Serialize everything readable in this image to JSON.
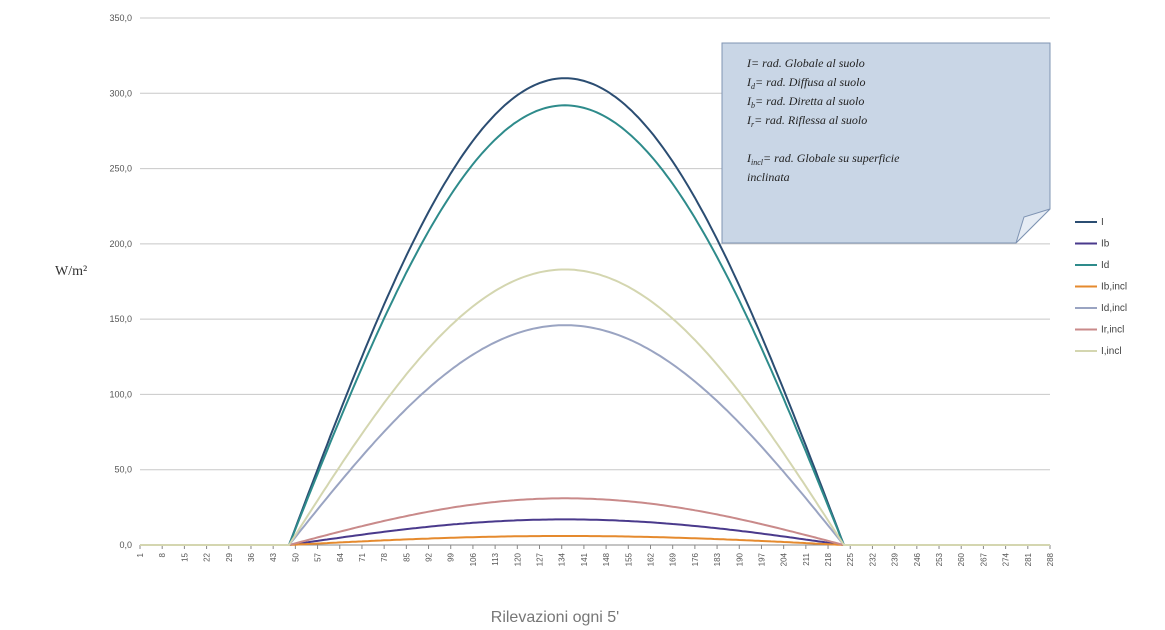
{
  "chart_data": {
    "type": "line",
    "xlabel": "Rilevazioni ogni 5'",
    "ylabel": "W/m²",
    "ylim": [
      0,
      350
    ],
    "y_ticks": [
      "0,0",
      "50,0",
      "100,0",
      "150,0",
      "200,0",
      "250,0",
      "300,0",
      "350,0"
    ],
    "x_count": 288,
    "x_ticks": [
      "1",
      "8",
      "15",
      "22",
      "29",
      "36",
      "43",
      "50",
      "57",
      "64",
      "71",
      "78",
      "85",
      "92",
      "99",
      "106",
      "113",
      "120",
      "127",
      "134",
      "141",
      "148",
      "155",
      "162",
      "169",
      "176",
      "183",
      "190",
      "197",
      "204",
      "211",
      "218",
      "225",
      "232",
      "239",
      "246",
      "253",
      "260",
      "267",
      "274",
      "281",
      "288"
    ],
    "grid": "horizontal",
    "legend_position": "right",
    "series": [
      {
        "name": "I",
        "color": "#2b4d72",
        "start": 48,
        "end": 223,
        "peak_x": 135,
        "peak": 310
      },
      {
        "name": "Ib",
        "color": "#4a3a8c",
        "start": 48,
        "end": 223,
        "peak_x": 135,
        "peak": 17
      },
      {
        "name": "Id",
        "color": "#2e8b8b",
        "start": 48,
        "end": 223,
        "peak_x": 135,
        "peak": 292
      },
      {
        "name": "Ib,incl",
        "color": "#e58a2e",
        "start": 48,
        "end": 223,
        "peak_x": 135,
        "peak": 6
      },
      {
        "name": "Id,incl",
        "color": "#9aa4c2",
        "start": 48,
        "end": 223,
        "peak_x": 135,
        "peak": 146
      },
      {
        "name": "Ir,incl",
        "color": "#c98a8a",
        "start": 48,
        "end": 223,
        "peak_x": 135,
        "peak": 31
      },
      {
        "name": "I,incl",
        "color": "#d4d6b0",
        "start": 48,
        "end": 223,
        "peak_x": 135,
        "peak": 183
      }
    ],
    "annotation": {
      "lines": [
        {
          "sym": "I",
          "sub": "",
          "text": "= rad. Globale al suolo"
        },
        {
          "sym": "I",
          "sub": "d",
          "text": "= rad. Diffusa  al suolo"
        },
        {
          "sym": "I",
          "sub": "b",
          "text": "= rad. Diretta al suolo"
        },
        {
          "sym": "I",
          "sub": "r",
          "text": "= rad. Riflessa al suolo"
        },
        {
          "sym": "",
          "sub": "",
          "text": ""
        },
        {
          "sym": "I",
          "sub": "incl",
          "text": "= rad. Globale su superficie"
        },
        {
          "sym": "",
          "sub": "",
          "text": "inclinata"
        }
      ]
    }
  }
}
